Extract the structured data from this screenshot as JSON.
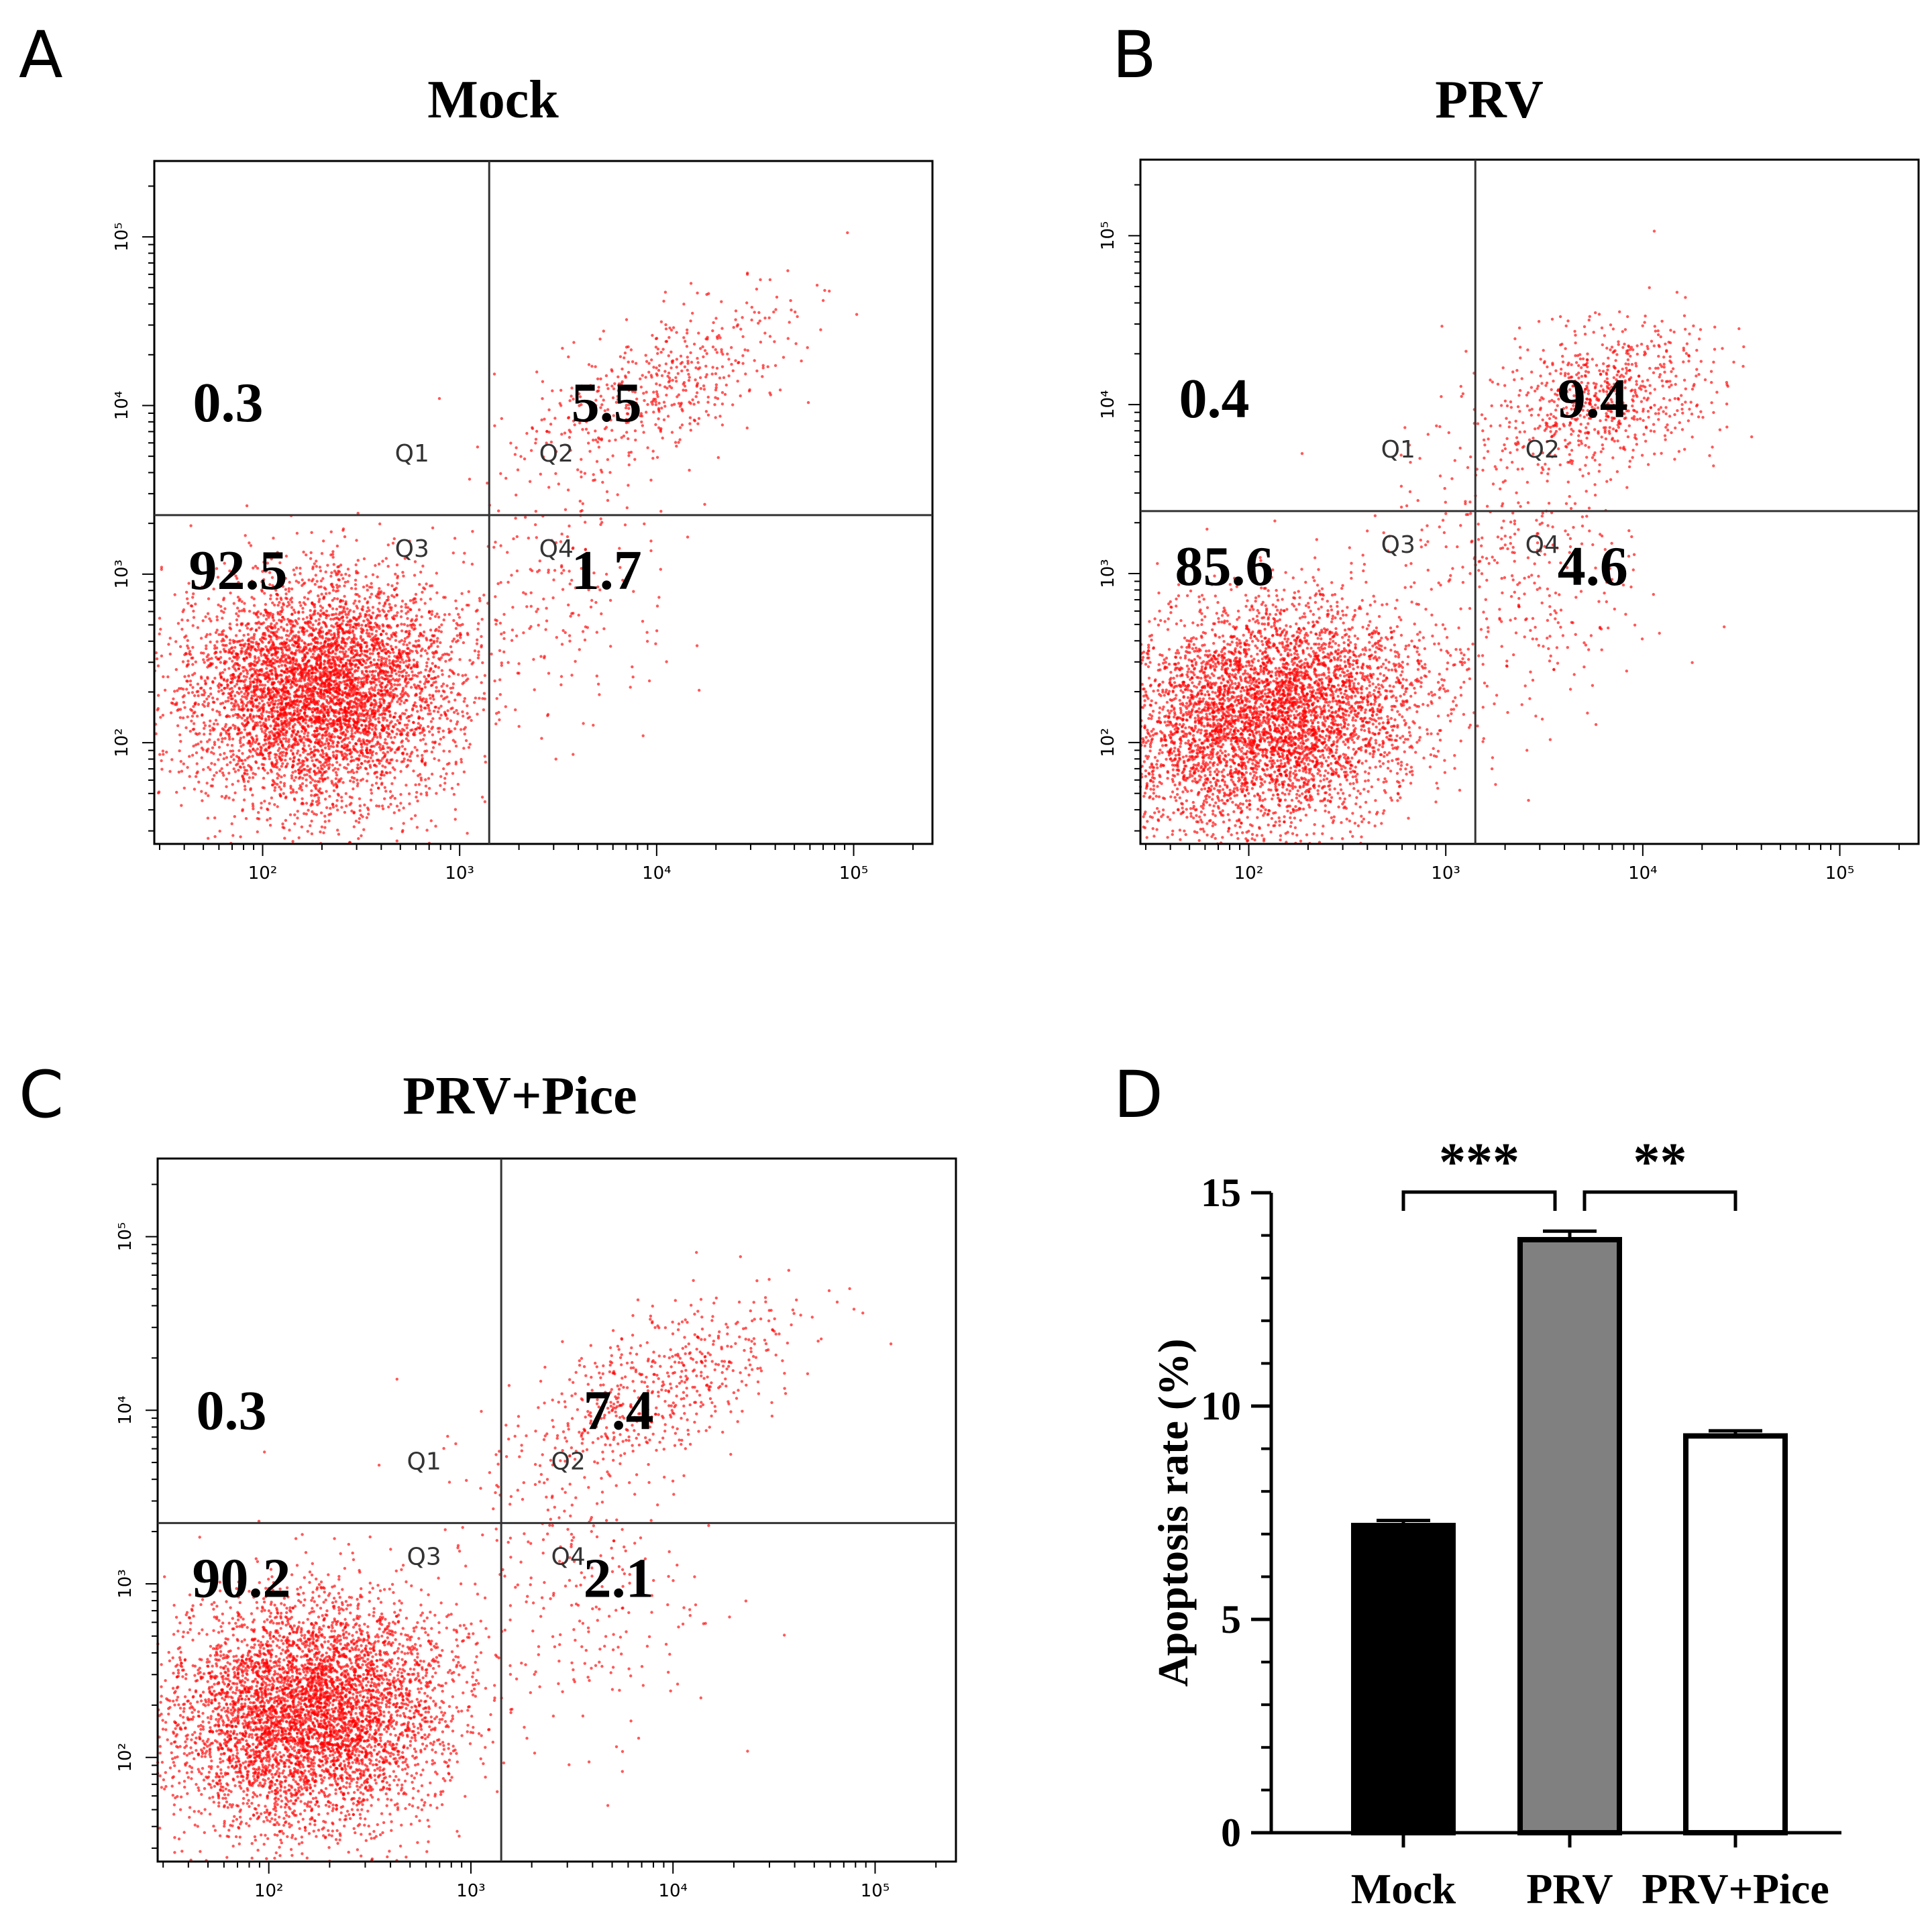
{
  "panels": [
    {
      "letter": "A",
      "title": "Mock",
      "quadrants": {
        "q1": "0.3",
        "q2": "5.5",
        "q3": "92.5",
        "q4": "1.7"
      },
      "quad_labels": [
        "Q1",
        "Q2",
        "Q3",
        "Q4"
      ],
      "gate": {
        "x_log": 3.15,
        "y_log": 3.35
      },
      "clusters": [
        {
          "cx": 2.3,
          "cy": 2.3,
          "sx": 0.35,
          "sy": 0.33,
          "n": 5200,
          "rot": 0.7
        },
        {
          "cx": 4.0,
          "cy": 4.1,
          "sx": 0.4,
          "sy": 0.18,
          "n": 500,
          "rot": 0.6
        },
        {
          "cx": 3.5,
          "cy": 2.9,
          "sx": 0.3,
          "sy": 0.4,
          "n": 180,
          "rot": 0.2
        }
      ]
    },
    {
      "letter": "B",
      "title": "PRV",
      "quadrants": {
        "q1": "0.4",
        "q2": "9.4",
        "q3": "85.6",
        "q4": "4.6"
      },
      "quad_labels": [
        "Q1",
        "Q2",
        "Q3",
        "Q4"
      ],
      "gate": {
        "x_log": 3.15,
        "y_log": 3.37
      },
      "clusters": [
        {
          "cx": 2.1,
          "cy": 2.15,
          "sx": 0.4,
          "sy": 0.32,
          "n": 5000,
          "rot": 0.4
        },
        {
          "cx": 3.8,
          "cy": 4.05,
          "sx": 0.28,
          "sy": 0.2,
          "n": 700,
          "rot": 0.3
        },
        {
          "cx": 3.4,
          "cy": 3.1,
          "sx": 0.3,
          "sy": 0.45,
          "n": 350,
          "rot": 0.2
        }
      ]
    },
    {
      "letter": "C",
      "title": "PRV+Pice",
      "quadrants": {
        "q1": "0.3",
        "q2": "7.4",
        "q3": "90.2",
        "q4": "2.1"
      },
      "quad_labels": [
        "Q1",
        "Q2",
        "Q3",
        "Q4"
      ],
      "gate": {
        "x_log": 3.15,
        "y_log": 3.35
      },
      "clusters": [
        {
          "cx": 2.2,
          "cy": 2.25,
          "sx": 0.35,
          "sy": 0.32,
          "n": 5200,
          "rot": 0.6
        },
        {
          "cx": 3.9,
          "cy": 4.1,
          "sx": 0.4,
          "sy": 0.2,
          "n": 600,
          "rot": 0.6
        },
        {
          "cx": 3.5,
          "cy": 2.9,
          "sx": 0.3,
          "sy": 0.4,
          "n": 220,
          "rot": 0.2
        }
      ]
    }
  ],
  "flow_axis": {
    "x_ticks": [
      {
        "value": 2,
        "label": "10²"
      },
      {
        "value": 3,
        "label": "10³"
      },
      {
        "value": 4,
        "label": "10⁴"
      },
      {
        "value": 5,
        "label": "10⁵"
      }
    ],
    "y_ticks": [
      {
        "value": 2,
        "label": "10²"
      },
      {
        "value": 3,
        "label": "10³"
      },
      {
        "value": 4,
        "label": "10⁴"
      },
      {
        "value": 5,
        "label": "10⁵"
      }
    ],
    "x_log_range": [
      1.45,
      5.4
    ],
    "y_log_range": [
      1.4,
      5.45
    ]
  },
  "chart_data": {
    "type": "bar",
    "letter": "D",
    "categories": [
      "Mock",
      "PRV",
      "PRV+Pice"
    ],
    "values": [
      7.2,
      13.9,
      9.3
    ],
    "errors": [
      0.12,
      0.2,
      0.12
    ],
    "bar_colors": [
      "#000000",
      "#808080",
      "#ffffff"
    ],
    "ylabel": "Apoptosis rate (%)",
    "xlabel": "",
    "ylim": [
      0,
      15
    ],
    "yticks": [
      0,
      5,
      10,
      15
    ],
    "significance": [
      {
        "from": 0,
        "to": 1,
        "label": "***"
      },
      {
        "from": 1,
        "to": 2,
        "label": "**"
      }
    ],
    "grid": false
  },
  "colors": {
    "dots": "#ff0000",
    "axis": "#000000"
  }
}
